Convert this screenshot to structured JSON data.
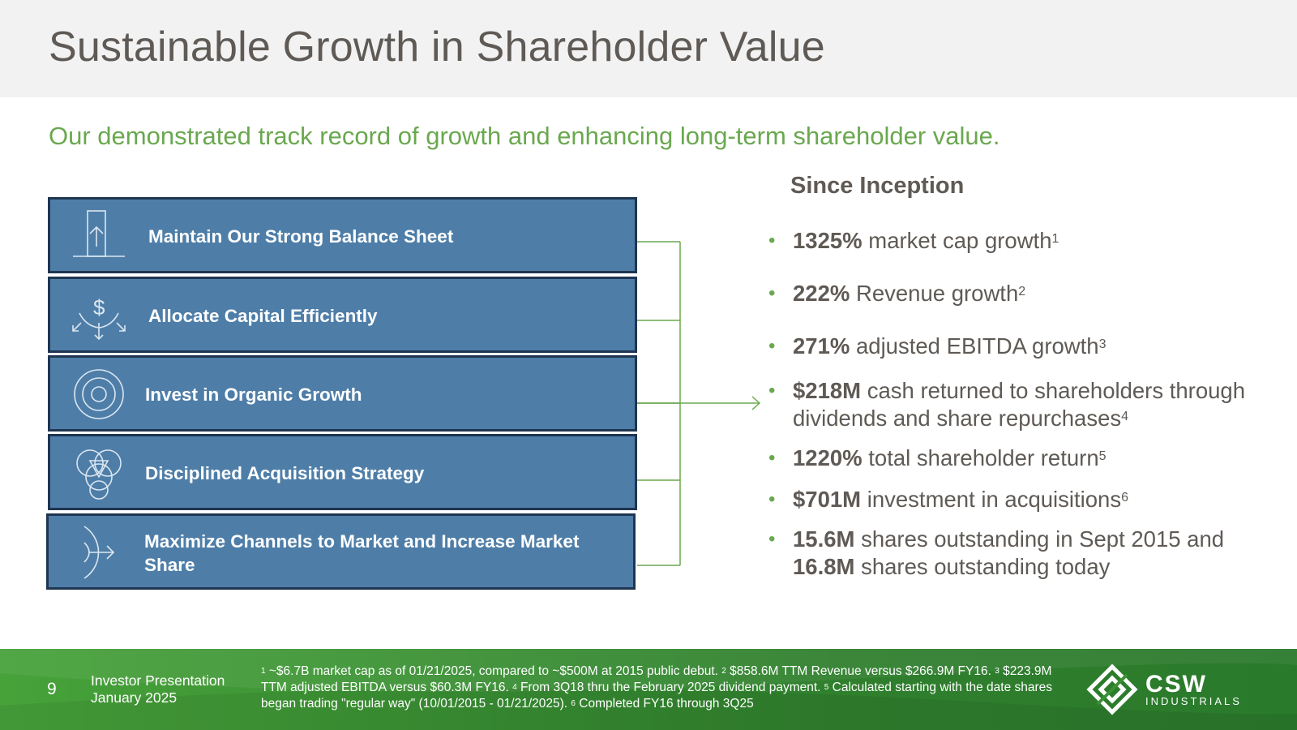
{
  "title": "Sustainable Growth in Shareholder Value",
  "subtitle": "Our demonstrated track record of growth and enhancing long-term shareholder value.",
  "pillars": [
    {
      "label": "Maintain Our Strong Balance Sheet",
      "icon": "balance-sheet-arrow-icon"
    },
    {
      "label": "Allocate Capital Efficiently",
      "icon": "dollar-arrows-icon"
    },
    {
      "label": "Invest in Organic Growth",
      "icon": "target-icon"
    },
    {
      "label": "Disciplined Acquisition Strategy",
      "icon": "interlocking-circles-icon"
    },
    {
      "label": "Maximize Channels to Market and Increase Market Share",
      "icon": "channel-arrow-icon"
    }
  ],
  "since_inception": {
    "heading": "Since Inception",
    "bullets": [
      {
        "bold": "1325%",
        "text": " market cap growth",
        "sup": "1"
      },
      {
        "bold": "222%",
        "text": " Revenue growth",
        "sup": "2"
      },
      {
        "bold": "271%",
        "text": " adjusted EBITDA growth",
        "sup": "3"
      },
      {
        "bold": "$218M",
        "text": " cash returned to shareholders through dividends and share repurchases",
        "sup": "4"
      },
      {
        "bold": "1220%",
        "text": " total shareholder return",
        "sup": "5"
      },
      {
        "bold": "$701M",
        "text": " investment in acquisitions",
        "sup": "6"
      },
      {
        "bold": "15.6M",
        "text": " shares outstanding in Sept 2015 and ",
        "bold2": "16.8M",
        "text2": " shares outstanding today"
      }
    ]
  },
  "footer": {
    "page_number": "9",
    "presentation_line1": "Investor Presentation",
    "presentation_line2": "January 2025",
    "footnotes": [
      {
        "sup": "1",
        "text": " ~$6.7B market cap as of 01/21/2025, compared to ~$500M at 2015 public debut. "
      },
      {
        "sup": "2",
        "text": " $858.6M TTM Revenue versus $266.9M FY16. "
      },
      {
        "sup": "3",
        "text": " $223.9M TTM adjusted EBITDA versus $60.3M FY16. "
      },
      {
        "sup": "4",
        "text": " From 3Q18 thru the February 2025 dividend payment. "
      },
      {
        "sup": "5",
        "text": " Calculated starting with the date shares began trading \"regular way\" (10/01/2015 - 01/21/2025). "
      },
      {
        "sup": "6",
        "text": " Completed FY16 through 3Q25"
      }
    ],
    "logo_name": "CSW",
    "logo_sub": "INDUSTRIALS"
  },
  "colors": {
    "accent_green": "#6aa84f",
    "pillar_blue": "#4e7ea8",
    "pillar_border": "#1f3551",
    "text_gray": "#5f5a55"
  }
}
